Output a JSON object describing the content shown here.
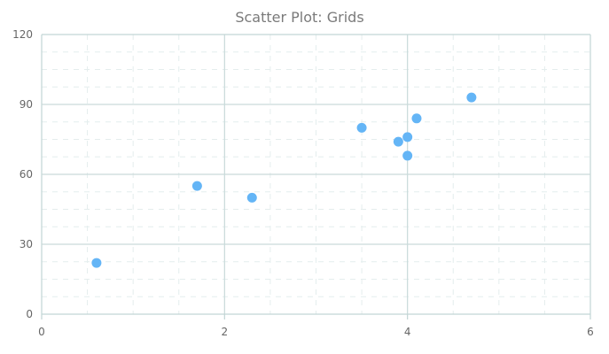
{
  "chart_data": {
    "type": "scatter",
    "title": "Scatter Plot: Grids",
    "xlabel": "",
    "ylabel": "",
    "xlim": [
      0,
      6
    ],
    "ylim": [
      0,
      120
    ],
    "x_ticks": [
      0,
      2,
      4,
      6
    ],
    "y_ticks": [
      0,
      30,
      60,
      90,
      120
    ],
    "x_minor_step": 0.5,
    "y_minor_step": 7.5,
    "grid": true,
    "legend": false,
    "series": [
      {
        "name": "",
        "points": [
          {
            "x": 0.6,
            "y": 22
          },
          {
            "x": 1.7,
            "y": 55
          },
          {
            "x": 2.3,
            "y": 50
          },
          {
            "x": 3.5,
            "y": 80
          },
          {
            "x": 3.9,
            "y": 74
          },
          {
            "x": 4.0,
            "y": 76
          },
          {
            "x": 4.0,
            "y": 68
          },
          {
            "x": 4.1,
            "y": 84
          },
          {
            "x": 4.7,
            "y": 93
          }
        ]
      }
    ],
    "colors": {
      "marker": "#64b5f6",
      "major_grid": "#c9dada",
      "minor_grid": "#e4eded",
      "axis": "#c2d5d5",
      "title": "#7a7a7a",
      "tick_label": "#666666"
    }
  }
}
